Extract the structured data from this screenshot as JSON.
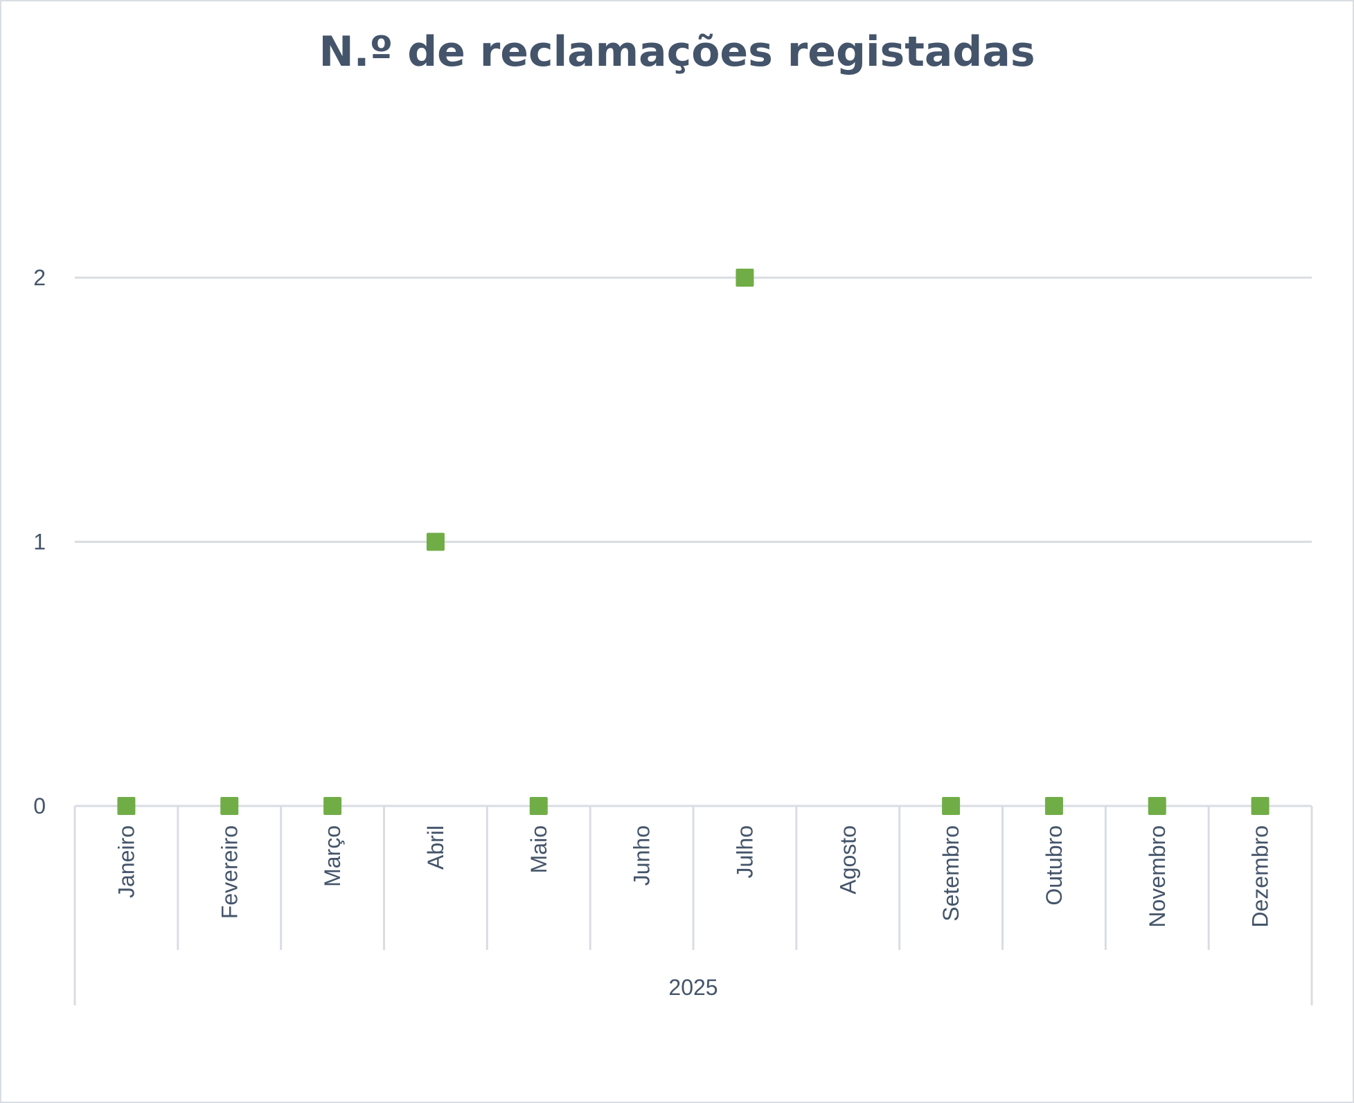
{
  "chart_data": {
    "type": "scatter",
    "title": "N.º de reclamações registadas",
    "categories": [
      "Janeiro",
      "Fevereiro",
      "Março",
      "Abril",
      "Maio",
      "Junho",
      "Julho",
      "Agosto",
      "Setembro",
      "Outubro",
      "Novembro",
      "Dezembro"
    ],
    "group_label": "2025",
    "series": [
      {
        "values": [
          0,
          0,
          0,
          1,
          0,
          null,
          2,
          null,
          0,
          0,
          0,
          0
        ],
        "color": "#70ad47",
        "marker": "square"
      }
    ],
    "ylim": [
      0,
      2
    ],
    "yticks": [
      0,
      1,
      2
    ],
    "grid": true,
    "legend": "none"
  }
}
